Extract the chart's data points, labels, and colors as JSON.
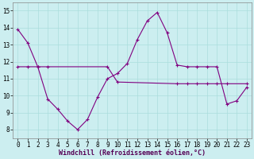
{
  "xlabel": "Windchill (Refroidissement éolien,°C)",
  "hours": [
    0,
    1,
    2,
    3,
    4,
    5,
    6,
    7,
    8,
    9,
    10,
    11,
    12,
    13,
    14,
    15,
    16,
    17,
    18,
    19,
    20,
    21,
    22,
    23
  ],
  "line1": [
    13.9,
    13.1,
    11.7,
    9.8,
    9.2,
    8.5,
    8.0,
    8.6,
    9.9,
    11.0,
    11.3,
    11.9,
    13.3,
    14.4,
    14.9,
    13.7,
    11.8,
    11.7,
    11.7,
    11.7,
    11.7,
    9.5,
    9.7,
    10.5
  ],
  "line2_x": [
    0,
    1,
    2,
    3,
    9,
    10,
    16,
    17,
    18,
    19,
    20,
    21,
    23
  ],
  "line2_y": [
    11.7,
    11.7,
    11.7,
    11.7,
    11.7,
    10.8,
    10.7,
    10.7,
    10.7,
    10.7,
    10.7,
    10.7,
    10.7
  ],
  "line_color": "#800080",
  "bg_color": "#cceef0",
  "grid_color": "#aadddd",
  "ylim": [
    7.5,
    15.5
  ],
  "xlim": [
    -0.5,
    23.5
  ],
  "yticks": [
    8,
    9,
    10,
    11,
    12,
    13,
    14,
    15
  ],
  "xticks": [
    0,
    1,
    2,
    3,
    4,
    5,
    6,
    7,
    8,
    9,
    10,
    11,
    12,
    13,
    14,
    15,
    16,
    17,
    18,
    19,
    20,
    21,
    22,
    23
  ]
}
